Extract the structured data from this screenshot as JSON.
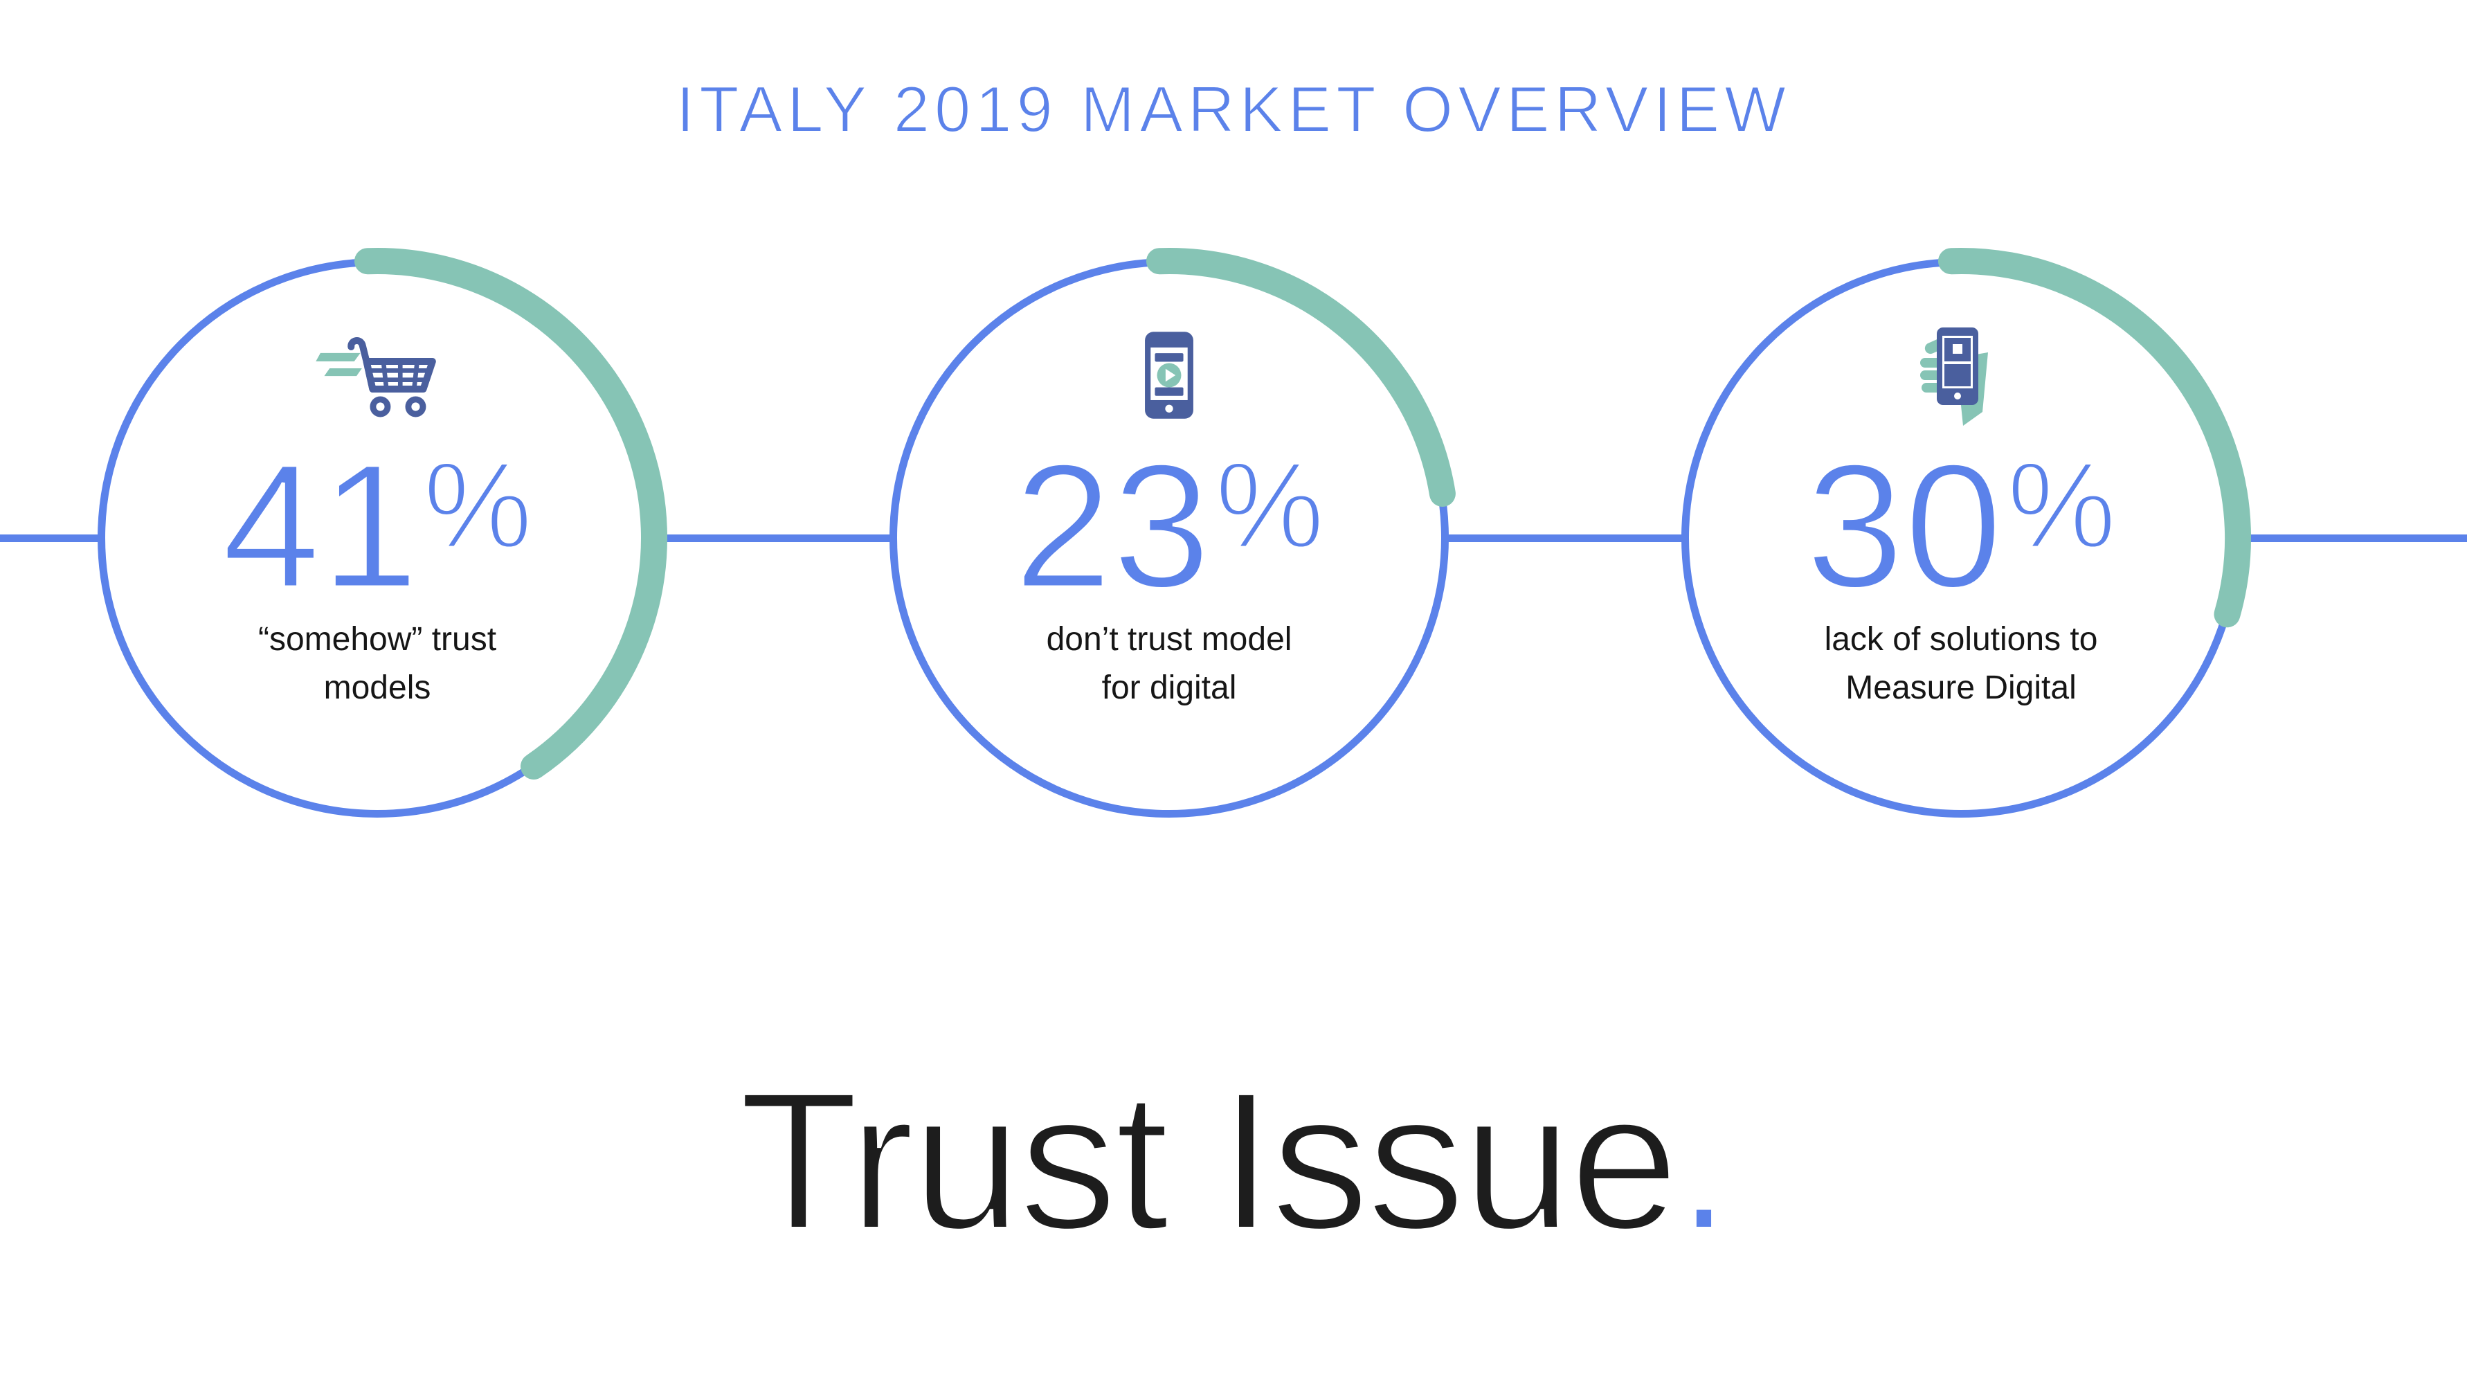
{
  "title": "ITALY 2019 MARKET OVERVIEW",
  "headline": {
    "text": "Trust Issue",
    "period": "."
  },
  "colors": {
    "accent_blue": "#5b82ea",
    "arc_green": "#86c4b5",
    "icon_navy": "#4a5f9e",
    "text_dark": "#161616"
  },
  "chart_data": {
    "type": "pie",
    "subtype": "progress-donuts",
    "title": "ITALY 2019 MARKET OVERVIEW",
    "annotation": "Trust Issue.",
    "arc_start_deg": -2,
    "legend_position": "none",
    "grid": false,
    "items": [
      {
        "value": 41,
        "unit": "%",
        "label": "“somehow” trust\nmodels",
        "icon": "shopping-cart-icon"
      },
      {
        "value": 23,
        "unit": "%",
        "label": "don’t trust model\nfor digital",
        "icon": "mobile-video-icon"
      },
      {
        "value": 30,
        "unit": "%",
        "label": "lack of solutions to\nMeasure Digital",
        "icon": "hand-holding-phone-icon"
      }
    ]
  }
}
